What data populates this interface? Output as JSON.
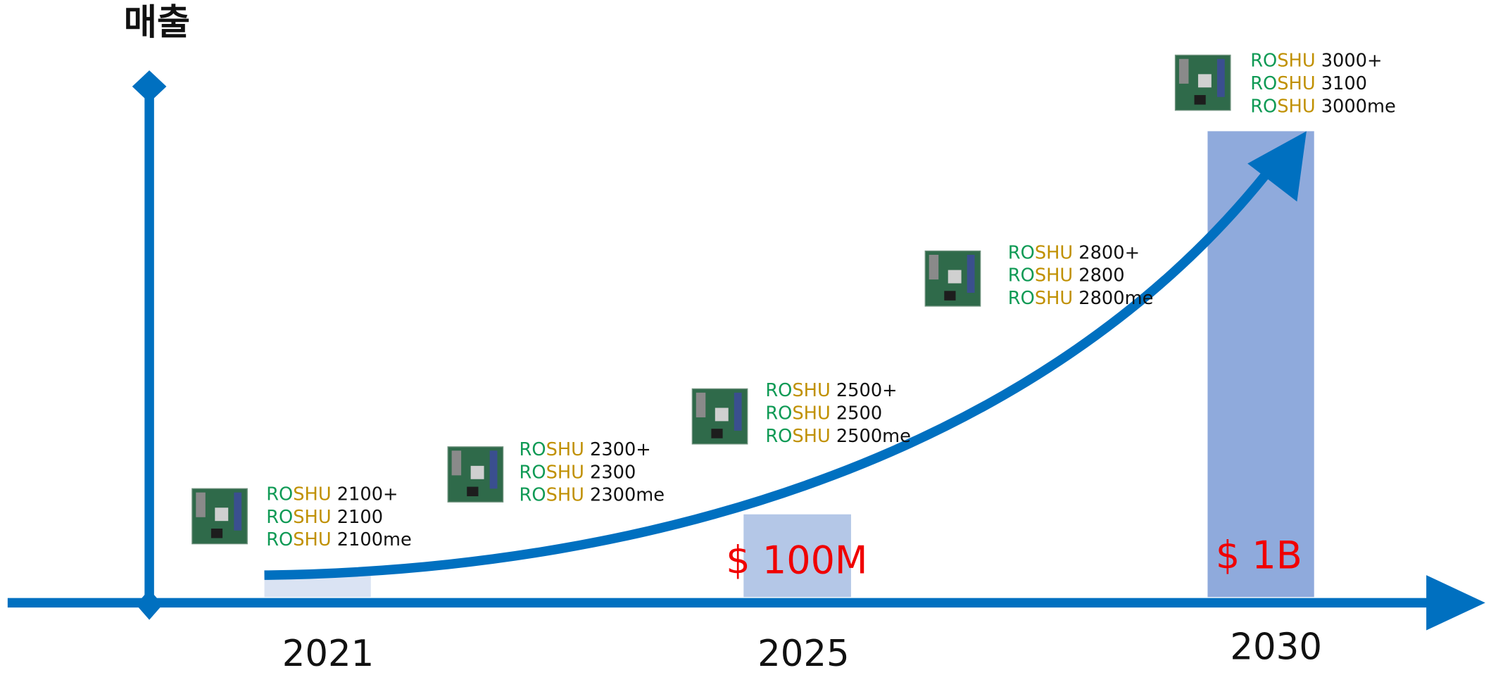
{
  "axis_label": "매출",
  "years": [
    "2021",
    "2025",
    "2030"
  ],
  "revenue_labels": [
    "$ 100M",
    "$ 1B"
  ],
  "product_groups": [
    {
      "lines": [
        {
          "ro": "RO",
          "shu": "SHU",
          "model": "2100+"
        },
        {
          "ro": "RO",
          "shu": "SHU",
          "model": "2100"
        },
        {
          "ro": "RO",
          "shu": "SHU",
          "model": "2100me"
        }
      ]
    },
    {
      "lines": [
        {
          "ro": "RO",
          "shu": "SHU",
          "model": "2300+"
        },
        {
          "ro": "RO",
          "shu": "SHU",
          "model": "2300"
        },
        {
          "ro": "RO",
          "shu": "SHU",
          "model": "2300me"
        }
      ]
    },
    {
      "lines": [
        {
          "ro": "RO",
          "shu": "SHU",
          "model": "2500+"
        },
        {
          "ro": "RO",
          "shu": "SHU",
          "model": "2500"
        },
        {
          "ro": "RO",
          "shu": "SHU",
          "model": "2500me"
        }
      ]
    },
    {
      "lines": [
        {
          "ro": "RO",
          "shu": "SHU",
          "model": "2800+"
        },
        {
          "ro": "RO",
          "shu": "SHU",
          "model": "2800"
        },
        {
          "ro": "RO",
          "shu": "SHU",
          "model": "2800me"
        }
      ]
    },
    {
      "lines": [
        {
          "ro": "RO",
          "shu": "SHU",
          "model": "3000+"
        },
        {
          "ro": "RO",
          "shu": "SHU",
          "model": "3100"
        },
        {
          "ro": "RO",
          "shu": "SHU",
          "model": "3000me"
        }
      ]
    }
  ]
}
